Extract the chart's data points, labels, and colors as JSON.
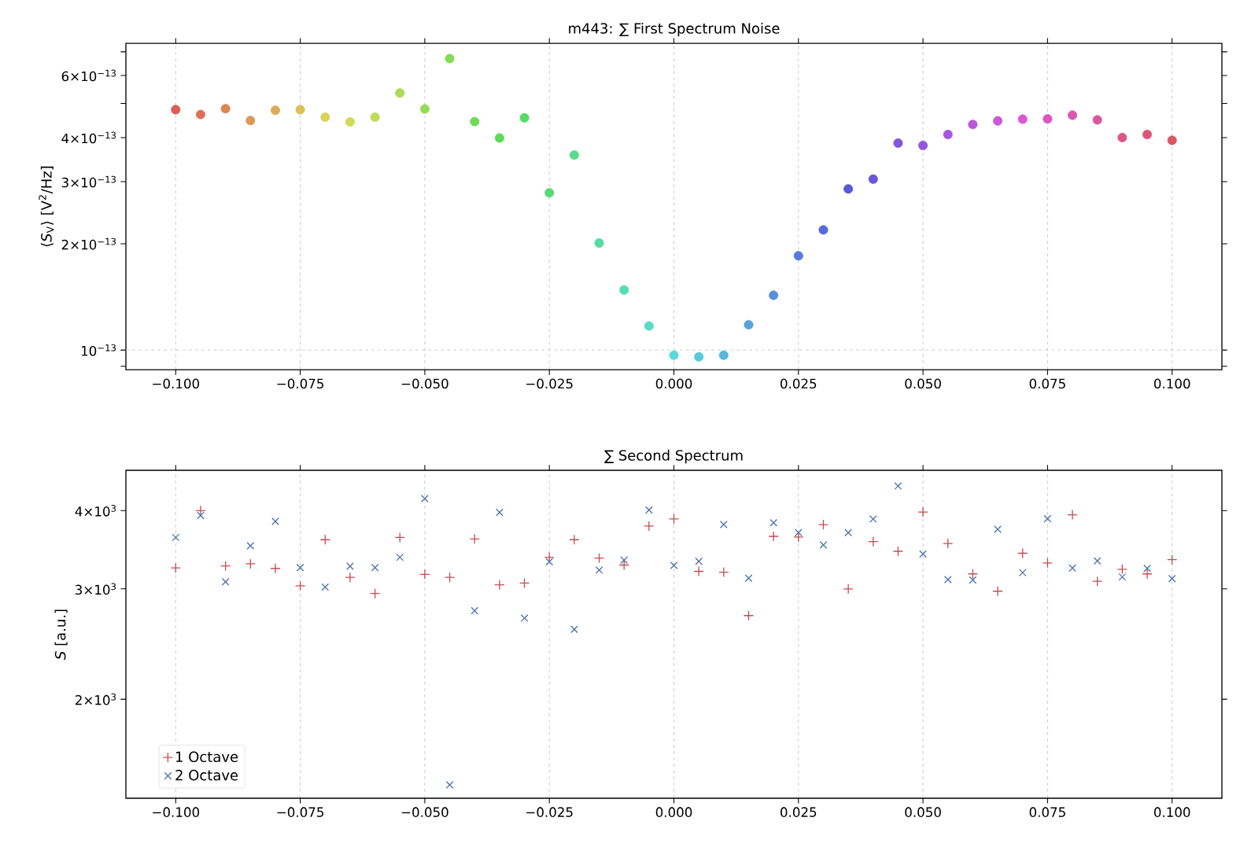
{
  "chart_data": [
    {
      "type": "scatter",
      "title": "m443: ∑ First Spectrum Noise",
      "ylabel": "⟨*S*$_{V}$⟩ [V$^{2}$/Hz]",
      "x": [
        -0.1,
        -0.095,
        -0.09,
        -0.085,
        -0.08,
        -0.075,
        -0.07,
        -0.065,
        -0.06,
        -0.055,
        -0.05,
        -0.045,
        -0.04,
        -0.035,
        -0.03,
        -0.025,
        -0.02,
        -0.015,
        -0.01,
        -0.005,
        0,
        0.005,
        0.01,
        0.015,
        0.02,
        0.025,
        0.03,
        0.035,
        0.04,
        0.045,
        0.05,
        0.055,
        0.06,
        0.065,
        0.07,
        0.075,
        0.08,
        0.085,
        0.09,
        0.095,
        0.1
      ],
      "values": [
        4.8e-13,
        4.65e-13,
        4.83e-13,
        4.47e-13,
        4.78e-13,
        4.8e-13,
        4.57e-13,
        4.43e-13,
        4.57e-13,
        5.35e-13,
        4.82e-13,
        6.7e-13,
        4.44e-13,
        3.99e-13,
        4.55e-13,
        2.79e-13,
        3.57e-13,
        2.01e-13,
        1.48e-13,
        1.17e-13,
        9.67e-14,
        9.57e-14,
        9.67e-14,
        1.18e-13,
        1.43e-13,
        1.85e-13,
        2.19e-13,
        2.86e-13,
        3.05e-13,
        3.86e-13,
        3.8e-13,
        4.08e-13,
        4.36e-13,
        4.46e-13,
        4.51e-13,
        4.52e-13,
        4.63e-13,
        4.49e-13,
        4e-13,
        4.08e-13,
        3.93e-13
      ],
      "colors": [
        "#db5f57",
        "#db7257",
        "#db8657",
        "#db9957",
        "#dbac57",
        "#dbc057",
        "#dbd357",
        "#d0db57",
        "#bddb57",
        "#a9db57",
        "#96db57",
        "#83db57",
        "#6fdb57",
        "#5cdb57",
        "#57db65",
        "#57db79",
        "#57db8c",
        "#57db9f",
        "#57dbb3",
        "#57dbc6",
        "#57dbd9",
        "#57c9db",
        "#57b6db",
        "#57a3db",
        "#578fdb",
        "#577cdb",
        "#5769db",
        "#5957db",
        "#6c57db",
        "#7f57db",
        "#9357db",
        "#a657db",
        "#b957db",
        "#cc57db",
        "#db57d6",
        "#db57c3",
        "#db57b0",
        "#db579c",
        "#db5789",
        "#db5776",
        "#db5762"
      ],
      "marker": "circle",
      "log": "y",
      "grid": "x",
      "xlim": [
        -0.11,
        0.11
      ],
      "ylim": [
        8.8e-14,
        7.4e-13
      ],
      "xticks": [
        {
          "value": -0.1,
          "label": "−0.100"
        },
        {
          "value": -0.075,
          "label": "−0.075"
        },
        {
          "value": -0.05,
          "label": "−0.050"
        },
        {
          "value": -0.025,
          "label": "−0.025"
        },
        {
          "value": 0,
          "label": "0.000"
        },
        {
          "value": 0.025,
          "label": "0.025"
        },
        {
          "value": 0.05,
          "label": "0.050"
        },
        {
          "value": 0.075,
          "label": "0.075"
        },
        {
          "value": 0.1,
          "label": "0.100"
        }
      ],
      "yticks": [
        {
          "value": 9e-14,
          "label": null
        },
        {
          "value": 1e-13,
          "label": "10$^{−13}$"
        },
        {
          "value": 2e-13,
          "label": "2×10$^{−13}$"
        },
        {
          "value": 3e-13,
          "label": "3×10$^{−13}$"
        },
        {
          "value": 4e-13,
          "label": "4×10$^{−13}$"
        },
        {
          "value": 5e-13,
          "label": null
        },
        {
          "value": 6e-13,
          "label": "6×10$^{−13}$"
        },
        {
          "value": 7e-13,
          "label": null
        }
      ],
      "ref_lines": [
        {
          "axis": "y",
          "value": 1e-13,
          "color": "#cccccc",
          "line_style": "dashed"
        }
      ]
    },
    {
      "type": "scatter",
      "title": "∑ Second Spectrum",
      "ylabel": "*S* [a.u.]",
      "x": [
        -0.1,
        -0.095,
        -0.09,
        -0.085,
        -0.08,
        -0.075,
        -0.07,
        -0.065,
        -0.06,
        -0.055,
        -0.05,
        -0.045,
        -0.04,
        -0.035,
        -0.03,
        -0.025,
        -0.02,
        -0.015,
        -0.01,
        -0.005,
        0,
        0.005,
        0.01,
        0.015,
        0.02,
        0.025,
        0.03,
        0.035,
        0.04,
        0.045,
        0.05,
        0.055,
        0.06,
        0.065,
        0.07,
        0.075,
        0.08,
        0.085,
        0.09,
        0.095,
        0.1
      ],
      "series": [
        {
          "name": "1 Octave",
          "color": "#c44e52",
          "marker": "plus",
          "values": [
            3240,
            4000,
            3265,
            3290,
            3235,
            3035,
            3595,
            3130,
            2950,
            3625,
            3165,
            3130,
            3605,
            3045,
            3065,
            3370,
            3595,
            3360,
            3275,
            3780,
            3880,
            3200,
            3190,
            2720,
            3640,
            3630,
            3800,
            3000,
            3570,
            3445,
            3980,
            3545,
            3170,
            2975,
            3420,
            3300,
            3940,
            3085,
            3225,
            3170,
            3340
          ]
        },
        {
          "name": "2 Octave",
          "color": "#4c72b0",
          "marker": "cross",
          "values": [
            3625,
            3930,
            3080,
            3515,
            3845,
            3245,
            3020,
            3260,
            3245,
            3370,
            4180,
            1460,
            2770,
            3975,
            2695,
            3315,
            2585,
            3215,
            3335,
            4010,
            3270,
            3320,
            3800,
            3120,
            3825,
            3690,
            3525,
            3690,
            3880,
            4380,
            3410,
            3105,
            3100,
            3735,
            3185,
            3885,
            3240,
            3325,
            3135,
            3235,
            3115
          ]
        }
      ],
      "log": "y",
      "grid": "x",
      "legend": "bottom left",
      "xlim": [
        -0.11,
        0.11
      ],
      "ylim": [
        1390,
        4640
      ],
      "xticks": [
        {
          "value": -0.1,
          "label": "−0.100"
        },
        {
          "value": -0.075,
          "label": "−0.075"
        },
        {
          "value": -0.05,
          "label": "−0.050"
        },
        {
          "value": -0.025,
          "label": "−0.025"
        },
        {
          "value": 0,
          "label": "0.000"
        },
        {
          "value": 0.025,
          "label": "0.025"
        },
        {
          "value": 0.05,
          "label": "0.050"
        },
        {
          "value": 0.075,
          "label": "0.075"
        },
        {
          "value": 0.1,
          "label": "0.100"
        }
      ],
      "yticks": [
        {
          "value": 2000,
          "label": "2×10$^{3}$"
        },
        {
          "value": 3000,
          "label": "3×10$^{3}$"
        },
        {
          "value": 4000,
          "label": "4×10$^{3}$"
        }
      ]
    }
  ]
}
